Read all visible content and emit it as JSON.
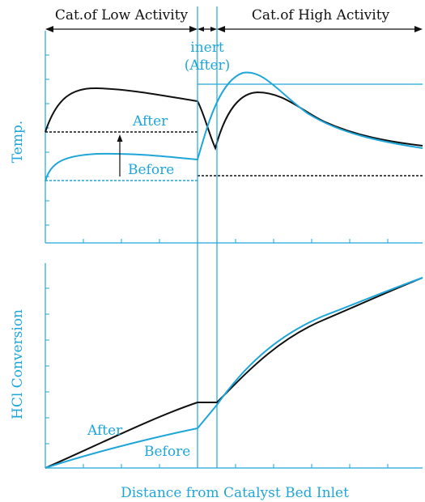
{
  "regions": {
    "low_activity": "Cat.of Low Activity",
    "high_activity": "Cat.of High Activity",
    "inert_line1": "inert",
    "inert_line2": "(After)"
  },
  "top_panel": {
    "ylabel": "Temp.",
    "after_label": "After",
    "before_label": "Before"
  },
  "bottom_panel": {
    "ylabel": "HCl Conversion",
    "after_label": "After",
    "before_label": "Before"
  },
  "xlabel": "Distance from Catalyst Bed Inlet",
  "colors": {
    "after": "#111111",
    "before": "#1fa6d8",
    "axis": "#1fa6d8"
  }
}
